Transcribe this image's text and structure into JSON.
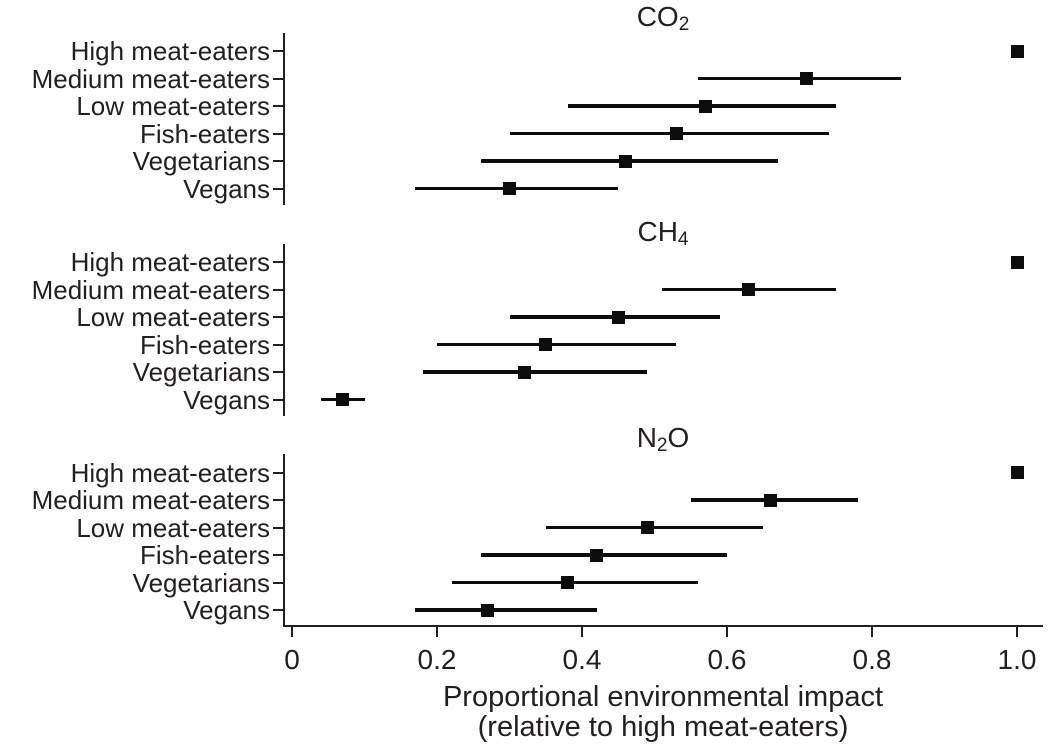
{
  "figure": {
    "background": "#ffffff",
    "text_color": "#231f20",
    "data_color": "#0c0c0c"
  },
  "chart_data": {
    "type": "scatter",
    "subtype": "dot-plot-with-error-bars",
    "title": "",
    "xlabel": "Proportional environmental impact (relative to high meat-eaters)",
    "xlabel_lines": [
      "Proportional environmental impact",
      "(relative to high meat-eaters)"
    ],
    "xlim": [
      0,
      1.04
    ],
    "xticks": [
      {
        "value": 0,
        "label": "0"
      },
      {
        "value": 0.2,
        "label": "0.2"
      },
      {
        "value": 0.4,
        "label": "0.4"
      },
      {
        "value": 0.6,
        "label": "0.6"
      },
      {
        "value": 0.8,
        "label": "0.8"
      },
      {
        "value": 1.0,
        "label": "1.0"
      }
    ],
    "categories": [
      "High meat-eaters",
      "Medium meat-eaters",
      "Low meat-eaters",
      "Fish-eaters",
      "Vegetarians",
      "Vegans"
    ],
    "legend": "none",
    "grid": "off",
    "panels": [
      {
        "title": "CO2",
        "title_parts": [
          {
            "t": "CO"
          },
          {
            "sub": "2"
          }
        ],
        "rows": [
          {
            "group": "High meat-eaters",
            "value": 1.0,
            "ci_low": null,
            "ci_high": null
          },
          {
            "group": "Medium meat-eaters",
            "value": 0.71,
            "ci_low": 0.56,
            "ci_high": 0.84
          },
          {
            "group": "Low meat-eaters",
            "value": 0.57,
            "ci_low": 0.38,
            "ci_high": 0.75
          },
          {
            "group": "Fish-eaters",
            "value": 0.53,
            "ci_low": 0.3,
            "ci_high": 0.74
          },
          {
            "group": "Vegetarians",
            "value": 0.46,
            "ci_low": 0.26,
            "ci_high": 0.67
          },
          {
            "group": "Vegans",
            "value": 0.3,
            "ci_low": 0.17,
            "ci_high": 0.45
          }
        ]
      },
      {
        "title": "CH4",
        "title_parts": [
          {
            "t": "CH"
          },
          {
            "sub": "4"
          }
        ],
        "rows": [
          {
            "group": "High meat-eaters",
            "value": 1.0,
            "ci_low": null,
            "ci_high": null
          },
          {
            "group": "Medium meat-eaters",
            "value": 0.63,
            "ci_low": 0.51,
            "ci_high": 0.75
          },
          {
            "group": "Low meat-eaters",
            "value": 0.45,
            "ci_low": 0.3,
            "ci_high": 0.59
          },
          {
            "group": "Fish-eaters",
            "value": 0.35,
            "ci_low": 0.2,
            "ci_high": 0.53
          },
          {
            "group": "Vegetarians",
            "value": 0.32,
            "ci_low": 0.18,
            "ci_high": 0.49
          },
          {
            "group": "Vegans",
            "value": 0.07,
            "ci_low": 0.04,
            "ci_high": 0.1
          }
        ]
      },
      {
        "title": "N2O",
        "title_parts": [
          {
            "t": "N"
          },
          {
            "sub": "2"
          },
          {
            "t": "O"
          }
        ],
        "rows": [
          {
            "group": "High meat-eaters",
            "value": 1.0,
            "ci_low": null,
            "ci_high": null
          },
          {
            "group": "Medium meat-eaters",
            "value": 0.66,
            "ci_low": 0.55,
            "ci_high": 0.78
          },
          {
            "group": "Low meat-eaters",
            "value": 0.49,
            "ci_low": 0.35,
            "ci_high": 0.65
          },
          {
            "group": "Fish-eaters",
            "value": 0.42,
            "ci_low": 0.26,
            "ci_high": 0.6
          },
          {
            "group": "Vegetarians",
            "value": 0.38,
            "ci_low": 0.22,
            "ci_high": 0.56
          },
          {
            "group": "Vegans",
            "value": 0.27,
            "ci_low": 0.17,
            "ci_high": 0.42
          }
        ]
      }
    ]
  }
}
